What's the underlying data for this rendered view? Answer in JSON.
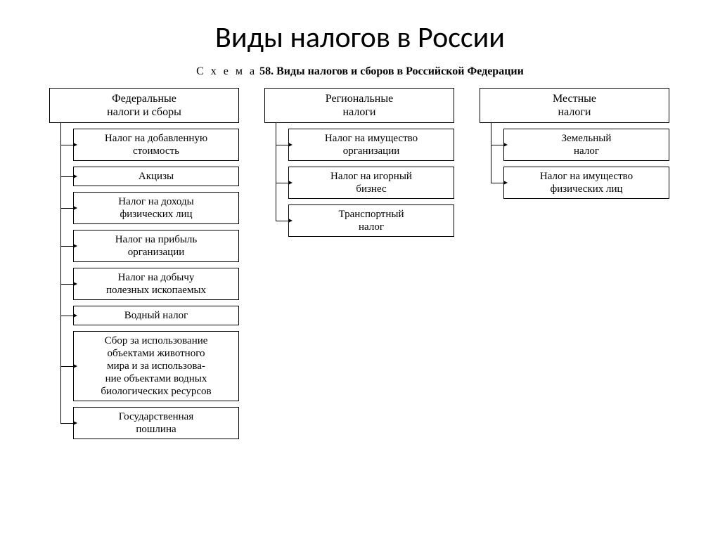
{
  "title": "Виды налогов в России",
  "subtitle_schema_label": "С х е м а",
  "subtitle_schema_number": "58.",
  "subtitle_text": "Виды налогов и сборов в Российской Федерации",
  "diagram": {
    "type": "tree",
    "border_color": "#000000",
    "background_color": "#ffffff",
    "text_color": "#000000",
    "header_fontsize": 16,
    "item_fontsize": 15,
    "columns": [
      {
        "header": "Федеральные\nналоги и сборы",
        "items": [
          "Налог на добавленную\nстоимость",
          "Акцизы",
          "Налог на доходы\nфизических лиц",
          "Налог на прибыль\nорганизации",
          "Налог на добычу\nполезных ископаемых",
          "Водный налог",
          "Сбор за использование\nобъектами животного\nмира и за использова-\nние объектами водных\nбиологических ресурсов",
          "Государственная\nпошлина"
        ]
      },
      {
        "header": "Региональные\nналоги",
        "items": [
          "Налог на имущество\nорганизации",
          "Налог на игорный\nбизнес",
          "Транспортный\nналог"
        ]
      },
      {
        "header": "Местные\nналоги",
        "items": [
          "Земельный\nналог",
          "Налог на имущество\nфизических лиц"
        ]
      }
    ]
  }
}
